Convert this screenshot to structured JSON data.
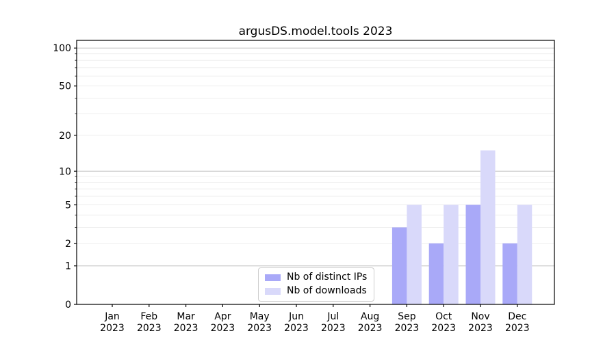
{
  "chart_data": {
    "type": "bar",
    "title": "argusDS.model.tools 2023",
    "x": {
      "months": [
        "Jan",
        "Feb",
        "Mar",
        "Apr",
        "May",
        "Jun",
        "Jul",
        "Aug",
        "Sep",
        "Oct",
        "Nov",
        "Dec"
      ],
      "year": "2023"
    },
    "categories": [
      "Jan 2023",
      "Feb 2023",
      "Mar 2023",
      "Apr 2023",
      "May 2023",
      "Jun 2023",
      "Jul 2023",
      "Aug 2023",
      "Sep 2023",
      "Oct 2023",
      "Nov 2023",
      "Dec 2023"
    ],
    "series": [
      {
        "name": "Nb of distinct IPs",
        "color": "#a9a9f8",
        "values": [
          0,
          0,
          0,
          0,
          0,
          0,
          0,
          0,
          3,
          2,
          5,
          2
        ]
      },
      {
        "name": "Nb of downloads",
        "color": "#d9d9fa",
        "values": [
          0,
          0,
          0,
          0,
          0,
          0,
          0,
          0,
          5,
          5,
          15,
          5
        ]
      }
    ],
    "yscale": "log1p",
    "ylim": [
      0,
      115
    ],
    "yticks_labeled": [
      0,
      1,
      2,
      5,
      10,
      20,
      50,
      100
    ],
    "yticks_minor": [
      3,
      4,
      6,
      7,
      8,
      9,
      30,
      40,
      60,
      70,
      80,
      90
    ],
    "grid_major": [
      1,
      10,
      100
    ],
    "grid_minor": [
      2,
      3,
      4,
      5,
      6,
      7,
      8,
      9,
      20,
      30,
      40,
      50,
      60,
      70,
      80,
      90
    ],
    "legend_position": "lower center",
    "grid": true,
    "colors": {
      "grid_major": "#bdbdbd",
      "grid_minor": "#ececec",
      "spine": "#000000",
      "text": "#000000"
    }
  }
}
